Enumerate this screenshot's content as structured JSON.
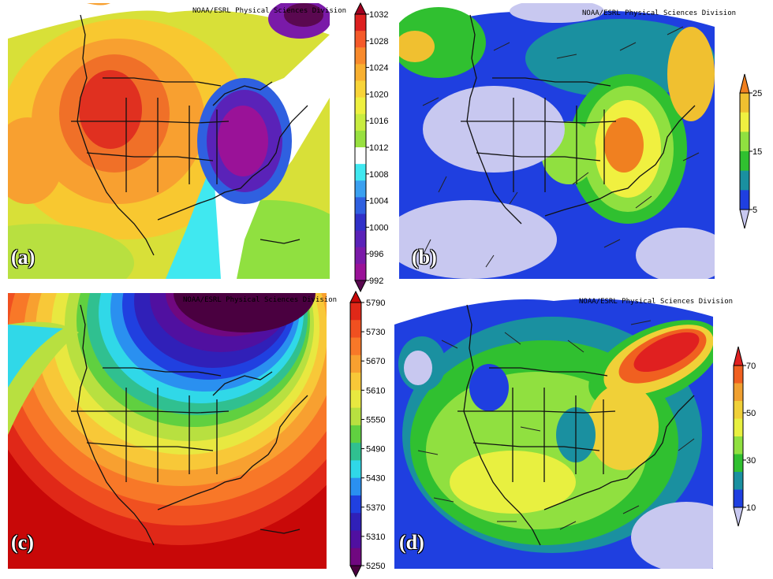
{
  "credit": "NOAA/ESRL Physical Sciences Division",
  "panels": [
    {
      "id": "a",
      "label": "(a)"
    },
    {
      "id": "b",
      "label": "(b)"
    },
    {
      "id": "c",
      "label": "(c)"
    },
    {
      "id": "d",
      "label": "(d)"
    }
  ],
  "colorbars": {
    "a": {
      "ticks": [
        "1032",
        "1028",
        "1024",
        "1020",
        "1016",
        "1012",
        "1008",
        "1004",
        "1000",
        "996",
        "992"
      ],
      "colors": [
        "#a00020",
        "#dd2020",
        "#f55a2a",
        "#f88a2c",
        "#f8b030",
        "#f8d438",
        "#eef040",
        "#c8ec40",
        "#98e040",
        "#ffffff",
        "#40e8f0",
        "#3aa0f0",
        "#2f60e0",
        "#3030c8",
        "#5a22b8",
        "#7a1aa8",
        "#9a1298",
        "#5a0850"
      ]
    },
    "b": {
      "ticks": [
        "25",
        "15",
        "5"
      ],
      "colors": [
        "#f08020",
        "#f0c030",
        "#f0f040",
        "#90e040",
        "#30c030",
        "#1a90a0",
        "#1f3fe0",
        "#c8c8f0"
      ]
    },
    "c": {
      "ticks": [
        "5790",
        "5730",
        "5670",
        "5610",
        "5550",
        "5490",
        "5430",
        "5370",
        "5310",
        "5250"
      ],
      "colors": [
        "#c80808",
        "#e02818",
        "#f05020",
        "#f87828",
        "#f8a030",
        "#f8c838",
        "#e8e840",
        "#b8e040",
        "#60d040",
        "#30c090",
        "#30d8e8",
        "#2a90f0",
        "#2040e0",
        "#3020b8",
        "#5010a0",
        "#700880",
        "#4a0040"
      ]
    },
    "d": {
      "ticks": [
        "70",
        "50",
        "30",
        "10"
      ],
      "colors": [
        "#e02020",
        "#f06020",
        "#f0a030",
        "#f0d038",
        "#e8f040",
        "#90e040",
        "#30c030",
        "#1a90a0",
        "#1f3fe0",
        "#c8c8f0"
      ]
    }
  }
}
